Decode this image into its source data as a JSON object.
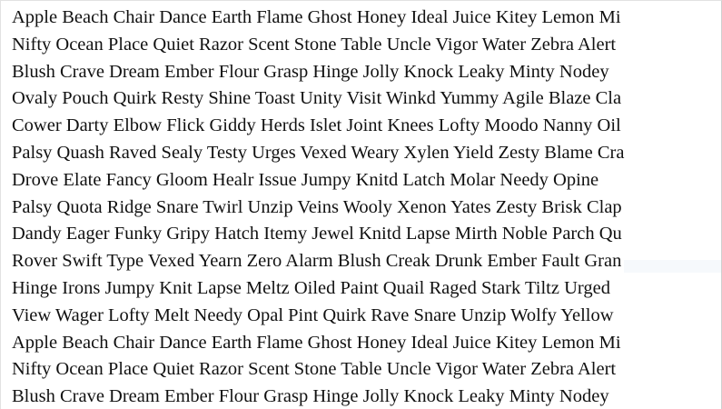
{
  "lines": [
    "Apple Beach Chair Dance Earth Flame Ghost Honey Ideal Juice Kitey Lemon Mi",
    "Nifty Ocean Place Quiet Razor Scent Stone Table Uncle Vigor Water Zebra Alert",
    "Blush Crave Dream Ember Flour Grasp Hinge Jolly Knock Leaky Minty Nodey",
    "Ovaly Pouch Quirk Resty Shine Toast Unity Visit Winkd Yummy Agile Blaze Cla",
    "Cower Darty Elbow Flick Giddy Herds Islet Joint Knees Lofty Moodo Nanny Oil",
    "Palsy Quash Raved Sealy Testy Urges Vexed Weary Xylen Yield Zesty Blame Cra",
    "Drove Elate Fancy Gloom Healr Issue Jumpy Knitd Latch Molar Needy Opine",
    "Palsy Quota Ridge Snare Twirl Unzip Veins Wooly Xenon Yates Zesty Brisk Clap",
    "Dandy Eager Funky Gripy Hatch Itemy Jewel Knitd Lapse Mirth Noble Parch Qu",
    "Rover Swift Type Vexed Yearn Zero Alarm Blush Creak Drunk Ember Fault Gran",
    "Hinge Irons Jumpy Knit Lapse Meltz Oiled Paint Quail Raged Stark Tiltz Urged",
    "View Wager Lofty Melt Needy Opal Pint Quirk Rave Snare Unzip Wolfy Yellow",
    "Apple Beach Chair Dance Earth Flame Ghost Honey Ideal Juice Kitey Lemon Mi",
    "Nifty Ocean Place Quiet Razor Scent Stone Table Uncle Vigor Water Zebra Alert",
    "Blush Crave Dream Ember Flour Grasp Hinge Jolly Knock Leaky Minty Nodey"
  ]
}
